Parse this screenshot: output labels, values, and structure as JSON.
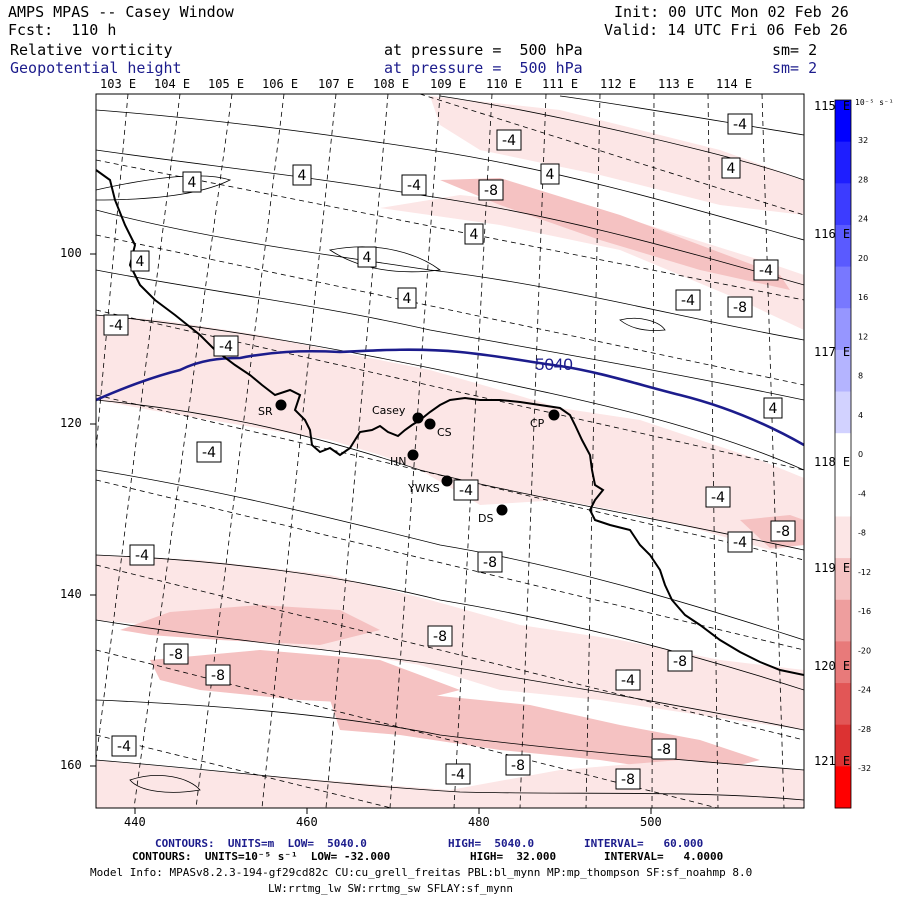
{
  "header": {
    "title": "AMPS MPAS -- Casey Window",
    "forecast": "Fcst:  110 h",
    "init": "Init: 00 UTC Mon 02 Feb 26",
    "valid": "Valid: 14 UTC Fri 06 Feb 26",
    "field1_name": "Relative vorticity",
    "field1_level": "at pressure =  500 hPa",
    "field1_sm": "sm= 2",
    "field2_name": "Geopotential height",
    "field2_level": "at pressure =  500 hPa",
    "field2_sm": "sm= 2"
  },
  "colors": {
    "geopotential_contour": "#1c1c8c",
    "header_blue": "#1c1c8c",
    "shade_light": "#fce6e6",
    "shade_mid": "#f5c2c2"
  },
  "map": {
    "top_longitudes": [
      "103 E",
      "104 E",
      "105 E",
      "106 E",
      "107 E",
      "108 E",
      "109 E",
      "110 E",
      "111 E",
      "112 E",
      "113 E",
      "114 E"
    ],
    "right_longitudes": [
      "115 E",
      "116 E",
      "117 E",
      "118 E",
      "119 E",
      "120 E",
      "121 E"
    ],
    "y_ticks": [
      "100",
      "120",
      "140",
      "160"
    ],
    "x_ticks": [
      "440",
      "460",
      "480",
      "500"
    ],
    "height_label": "5040",
    "contour_labels": [
      "-4",
      "4",
      "4",
      "-4",
      "-8",
      "4",
      "4",
      "-4",
      "4",
      "4",
      "4",
      "4",
      "-4",
      "-8",
      "-4",
      "-4",
      "4",
      "-4",
      "-4",
      "-4",
      "-8",
      "-4",
      "-4",
      "-8",
      "-4",
      "-8",
      "-8",
      "-8",
      "-4",
      "-8",
      "-4",
      "-8",
      "-8",
      "-8",
      "-4"
    ],
    "stations": [
      {
        "name": "SR",
        "label": "SR"
      },
      {
        "name": "Casey",
        "label": "Casey"
      },
      {
        "name": "CS",
        "label": "CS"
      },
      {
        "name": "CP",
        "label": "CP"
      },
      {
        "name": "HN",
        "label": "HN"
      },
      {
        "name": "YWKS",
        "label": "YWKS"
      },
      {
        "name": "DS",
        "label": "DS"
      }
    ]
  },
  "colorbar": {
    "unit_label": "10⁻⁵ s⁻¹",
    "ticks": [
      "32",
      "28",
      "24",
      "20",
      "16",
      "12",
      "8",
      "4",
      "0",
      "-4",
      "-8",
      "-12",
      "-16",
      "-20",
      "-24",
      "-28",
      "-32"
    ],
    "colors": [
      "#0000ff",
      "#1e1eff",
      "#3c3cff",
      "#5a5aff",
      "#7878ff",
      "#9696ff",
      "#b4b4ff",
      "#d2d2ff",
      "#ffffff",
      "#ffffff",
      "#fce6e6",
      "#f5c2c2",
      "#ee9e9e",
      "#e87a7a",
      "#e25656",
      "#dc3232",
      "#ff0000"
    ]
  },
  "footer": {
    "contours1_label": "CONTOURS:  UNITS=m  LOW=  5040.0",
    "contours1_high": "HIGH=  5040.0",
    "contours1_interval": "INTERVAL=   60.000",
    "contours2_label": "CONTOURS:  UNITS=10⁻⁵ s⁻¹  LOW= -32.000",
    "contours2_high": "HIGH=  32.000",
    "contours2_interval": "INTERVAL=   4.0000",
    "model_info_1": "Model Info: MPASv8.2.3-194-gf29cd82c CU:cu_grell_freitas PBL:bl_mynn MP:mp_thompson SF:sf_noahmp 8.0",
    "model_info_2": "LW:rrtmg_lw SW:rrtmg_sw SFLAY:sf_mynn"
  }
}
